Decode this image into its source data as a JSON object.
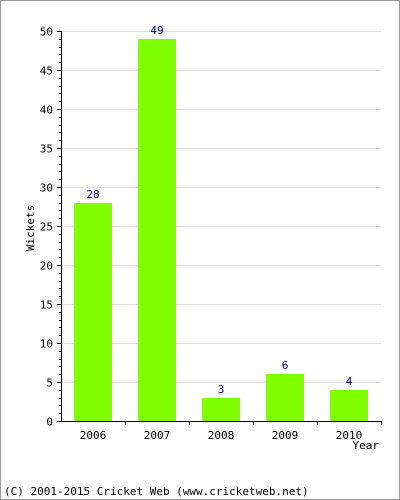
{
  "chart_data": {
    "type": "bar",
    "categories": [
      "2006",
      "2007",
      "2008",
      "2009",
      "2010"
    ],
    "values": [
      28,
      49,
      3,
      6,
      4
    ],
    "xlabel": "Year",
    "ylabel": "Wickets",
    "ylim": [
      0,
      50
    ],
    "yticks": [
      0,
      5,
      10,
      15,
      20,
      25,
      30,
      35,
      40,
      45,
      50
    ],
    "grid": true,
    "bar_color": "#80ff00",
    "value_label_color": "#000080",
    "grid_color": "#dddddd"
  },
  "footer": {
    "copyright": "(C) 2001-2015 Cricket Web (www.cricketweb.net)"
  }
}
